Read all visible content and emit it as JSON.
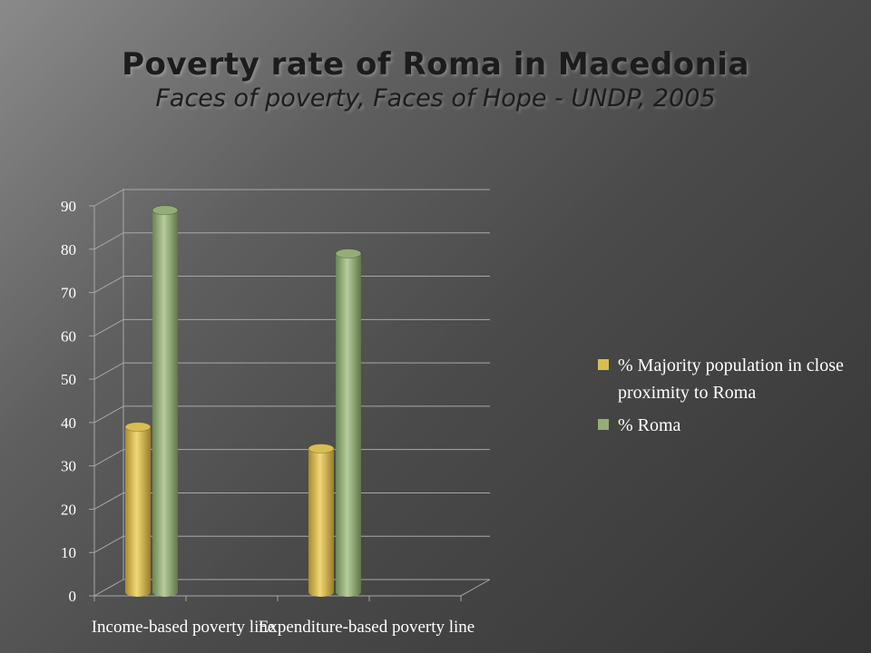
{
  "slide": {
    "title": "Poverty rate of Roma in Macedonia",
    "subtitle": "Faces of poverty, Faces of Hope - UNDP, 2005"
  },
  "chart_data": {
    "type": "bar",
    "style": "3d-cylinder",
    "categories": [
      "Income-based poverty line",
      "Expenditure-based poverty line"
    ],
    "series": [
      {
        "name": "% Majority population in close proximity to Roma",
        "values": [
          39,
          34
        ],
        "color": "#d9bd52"
      },
      {
        "name": "% Roma",
        "values": [
          89,
          79
        ],
        "color": "#94ad78"
      }
    ],
    "yticks": [
      0,
      10,
      20,
      30,
      40,
      50,
      60,
      70,
      80,
      90
    ],
    "ylim": [
      0,
      90
    ],
    "grid": true,
    "legend": "right",
    "colors": {
      "grid": "#a8a8a8",
      "text": "#ffffff"
    }
  }
}
